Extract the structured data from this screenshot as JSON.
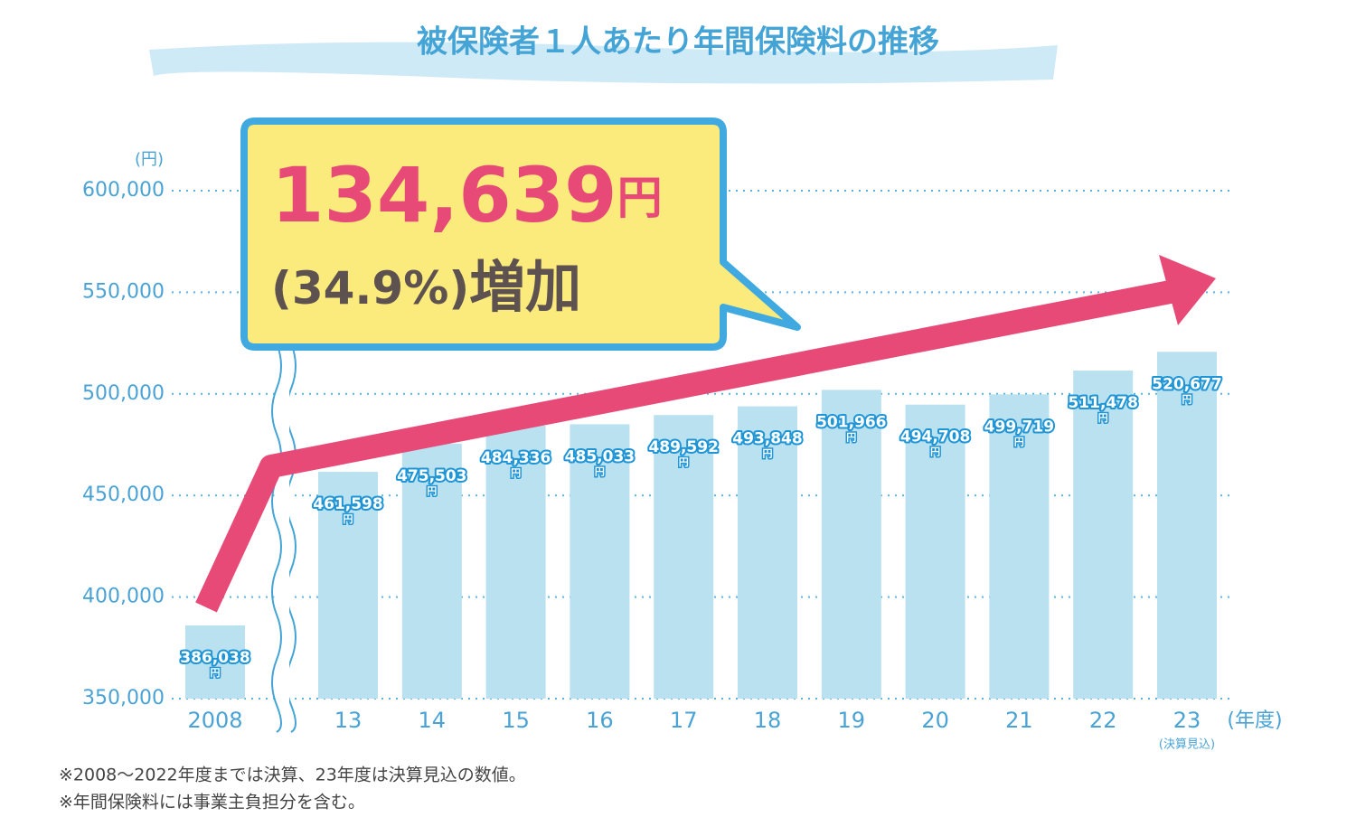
{
  "chart_data": {
    "type": "bar",
    "title": "被保険者１人あたり年間保険料の推移",
    "y_unit": "(円)",
    "x_unit": "(年度)",
    "categories": [
      "2008",
      "13",
      "14",
      "15",
      "16",
      "17",
      "18",
      "19",
      "20",
      "21",
      "22",
      "23"
    ],
    "category_notes": [
      null,
      null,
      null,
      null,
      null,
      null,
      null,
      null,
      null,
      null,
      null,
      "(決算見込)"
    ],
    "values": [
      386038,
      461598,
      475503,
      484336,
      485033,
      489592,
      493848,
      501966,
      494708,
      499719,
      511478,
      520677
    ],
    "value_labels": [
      "386,038",
      "461,598",
      "475,503",
      "484,336",
      "485,033",
      "489,592",
      "493,848",
      "501,966",
      "494,708",
      "499,719",
      "511,478",
      "520,677"
    ],
    "value_label_unit": "円",
    "color": "#b9e1f0",
    "ylim": [
      350000,
      600000
    ],
    "yticks": [
      {
        "value": 350000,
        "label": "350,000"
      },
      {
        "value": 400000,
        "label": "400,000"
      },
      {
        "value": 450000,
        "label": "450,000"
      },
      {
        "value": 500000,
        "label": "500,000"
      },
      {
        "value": 550000,
        "label": "550,000"
      },
      {
        "value": 600000,
        "label": "600,000"
      }
    ],
    "grid": true,
    "callout": {
      "amount": "134,639",
      "amount_unit": "円",
      "change": "(34.9%)",
      "change_word": "増加"
    },
    "notes": [
      "※2008～2022年度までは決算、23年度は決算見込の数値。",
      "※年間保険料には事業主負担分を含む。"
    ]
  }
}
